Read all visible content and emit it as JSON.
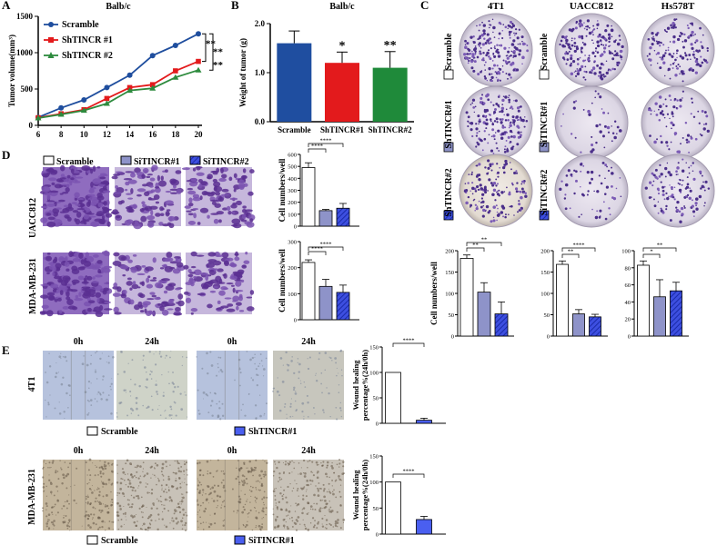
{
  "panels": {
    "A": "A",
    "B": "B",
    "C": "C",
    "D": "D",
    "E": "E"
  },
  "chart_data": [
    {
      "id": "A",
      "type": "line",
      "title": "Balb/c",
      "xlabel": "",
      "ylabel": "Tumor volume(mm³)",
      "x": [
        6,
        8,
        10,
        12,
        14,
        16,
        18,
        20
      ],
      "xlim": [
        6,
        20
      ],
      "ylim": [
        0,
        1500
      ],
      "yticks": [
        0,
        500,
        1000,
        1500
      ],
      "series": [
        {
          "name": "Scramble",
          "color": "#1f4e9e",
          "marker": "circle",
          "values": [
            110,
            240,
            350,
            520,
            690,
            960,
            1100,
            1260
          ]
        },
        {
          "name": "ShTINCR #1",
          "color": "#e31a1c",
          "marker": "square",
          "values": [
            105,
            160,
            215,
            370,
            520,
            560,
            750,
            880
          ]
        },
        {
          "name": "ShTINCR #2",
          "color": "#2e8b3e",
          "marker": "triangle",
          "values": [
            100,
            150,
            205,
            300,
            480,
            510,
            660,
            760
          ]
        }
      ],
      "significance": [
        "**",
        "**",
        "**"
      ]
    },
    {
      "id": "B",
      "type": "bar",
      "title": "Balb/c",
      "ylabel": "Weight of tumor (g)",
      "categories": [
        "Scramble",
        "ShTINCR#1",
        "ShTINCR#2"
      ],
      "values": [
        1.6,
        1.2,
        1.1
      ],
      "errors": [
        0.25,
        0.22,
        0.33
      ],
      "colors": [
        "#1f4ea0",
        "#e31a1c",
        "#1f8a3a"
      ],
      "ylim": [
        0,
        2
      ],
      "yticks": [
        "0.0",
        "1.0",
        "2.0"
      ],
      "significance": [
        "",
        "*",
        "**"
      ]
    },
    {
      "id": "D1",
      "type": "bar",
      "ylabel": "Cell numbers/well",
      "categories": [
        "Scramble",
        "SiTINCR#1",
        "SiTINCR#2"
      ],
      "values": [
        490,
        130,
        150
      ],
      "errors": [
        40,
        10,
        40
      ],
      "ylim": [
        0,
        600
      ],
      "yticks": [
        0,
        100,
        200,
        300,
        400,
        500,
        600
      ],
      "brackets": [
        "****",
        "****"
      ]
    },
    {
      "id": "D2",
      "type": "bar",
      "ylabel": "Cell numbers/well",
      "categories": [
        "Scramble",
        "SiTINCR#1",
        "SiTINCR#2"
      ],
      "values": [
        220,
        128,
        105
      ],
      "errors": [
        10,
        27,
        28
      ],
      "ylim": [
        0,
        300
      ],
      "yticks": [
        0,
        100,
        200,
        300
      ],
      "brackets": [
        "****",
        "****"
      ]
    },
    {
      "id": "C1",
      "type": "bar",
      "ylabel": "Cell numbers/well",
      "categories": [
        "Scramble",
        "ShTINCR#1",
        "ShTINCR#2"
      ],
      "values": [
        182,
        103,
        52
      ],
      "errors": [
        8,
        22,
        28
      ],
      "ylim": [
        0,
        200
      ],
      "yticks": [
        0,
        50,
        100,
        150,
        200
      ],
      "brackets": [
        "**",
        "**"
      ]
    },
    {
      "id": "C2",
      "type": "bar",
      "ylabel": "",
      "categories": [
        "Scramble",
        "SiTINCR#1",
        "SiTINCR#2"
      ],
      "values": [
        168,
        52,
        45
      ],
      "errors": [
        8,
        10,
        6
      ],
      "ylim": [
        0,
        200
      ],
      "yticks": [
        0,
        50,
        100,
        150,
        200
      ],
      "brackets": [
        "**",
        "****"
      ]
    },
    {
      "id": "C3",
      "type": "bar",
      "ylabel": "",
      "categories": [
        "Scramble",
        "SiTINCR#1",
        "SiTINCR#2"
      ],
      "values": [
        83,
        46,
        53
      ],
      "errors": [
        5,
        20,
        10
      ],
      "ylim": [
        0,
        100
      ],
      "yticks": [
        0,
        20,
        40,
        60,
        80,
        100
      ],
      "brackets": [
        "*",
        "**"
      ]
    },
    {
      "id": "E1",
      "type": "bar",
      "ylabel": "Wound healing percentage%(24h/0h)",
      "categories": [
        "Scramble",
        "ShTINCR#1"
      ],
      "values": [
        100,
        6
      ],
      "errors": [
        0,
        4
      ],
      "ylim": [
        0,
        150
      ],
      "yticks": [
        0,
        50,
        100,
        150
      ],
      "brackets": [
        "****"
      ]
    },
    {
      "id": "E2",
      "type": "bar",
      "ylabel": "Wound healing percentage%(24h/0h)",
      "categories": [
        "Scramble",
        "SiTINCR#1"
      ],
      "values": [
        100,
        28
      ],
      "errors": [
        0,
        6
      ],
      "ylim": [
        0,
        150
      ],
      "yticks": [
        0,
        50,
        100,
        150
      ],
      "brackets": [
        "****"
      ]
    }
  ],
  "c_titles": {
    "c1": "4T1",
    "c2": "UACC812",
    "c3": "Hs578T"
  },
  "c_rows_left": [
    "Scramble",
    "ShTINCR#1",
    "ShTINCR#2"
  ],
  "c_rows_mid": [
    "Scramble",
    "SiTINCR#1",
    "SiTINCR#2"
  ],
  "d_legend": [
    "Scramble",
    "SiTINCR#1",
    "SiTINCR#2"
  ],
  "d_rows": [
    "UACC812",
    "MDA-MB-231"
  ],
  "e_top_times": [
    "0h",
    "24h",
    "0h",
    "24h"
  ],
  "e_rows": [
    "4T1",
    "MDA-MB-231"
  ],
  "e_leg1": [
    "Scramble",
    "ShTINCR#1"
  ],
  "e_leg2": [
    "Scramble",
    "SiTINCR#1"
  ],
  "colors": {
    "blue_dark": "#1f4ea0",
    "red": "#e31a1c",
    "green": "#1f8a3a",
    "lavender": "#8e93c9",
    "royal": "#3d4fe0",
    "stain": "#6a3aa0"
  }
}
